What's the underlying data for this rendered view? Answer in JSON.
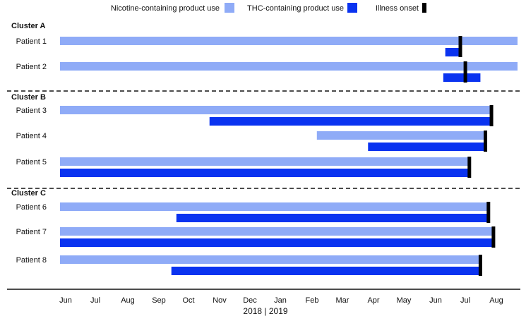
{
  "chart_data": {
    "type": "bar",
    "orientation": "horizontal-timeline",
    "x_unit": "month",
    "x_range": [
      "2018-06-01",
      "2019-08-31"
    ],
    "tick_labels": [
      "Jun",
      "Jul",
      "Aug",
      "Sep",
      "Oct",
      "Nov",
      "Dec",
      "Jan",
      "Feb",
      "Mar",
      "Apr",
      "May",
      "Jun",
      "Jul",
      "Aug"
    ],
    "year_label": "2018 | 2019",
    "legend": {
      "placement": "top",
      "items": [
        {
          "key": "nicotine",
          "label": "Nicotine-containing product use",
          "color": "#8fabf7"
        },
        {
          "key": "thc",
          "label": "THC-containing product use",
          "color": "#0a33f0"
        },
        {
          "key": "onset",
          "label": "Illness onset",
          "color": "#000000"
        }
      ]
    },
    "clusters": [
      {
        "name": "Cluster A",
        "patients": [
          {
            "label": "Patient 1",
            "nicotine": [
              "2018-06-01",
              "2019-08-31"
            ],
            "thc": [
              "2019-06-20",
              "2019-07-05"
            ],
            "onset": "2019-07-05"
          },
          {
            "label": "Patient 2",
            "nicotine": [
              "2018-06-01",
              "2019-08-31"
            ],
            "thc": [
              "2019-06-18",
              "2019-07-25"
            ],
            "onset": "2019-07-10"
          }
        ]
      },
      {
        "name": "Cluster B",
        "patients": [
          {
            "label": "Patient 3",
            "nicotine": [
              "2018-06-01",
              "2019-08-05"
            ],
            "thc": [
              "2018-10-28",
              "2019-08-05"
            ],
            "onset": "2019-08-05"
          },
          {
            "label": "Patient 4",
            "nicotine": [
              "2019-02-12",
              "2019-07-30"
            ],
            "thc": [
              "2019-04-04",
              "2019-07-30"
            ],
            "onset": "2019-07-30"
          },
          {
            "label": "Patient 5",
            "nicotine": [
              "2018-06-01",
              "2019-07-14"
            ],
            "thc": [
              "2018-06-01",
              "2019-07-14"
            ],
            "onset": "2019-07-14"
          }
        ]
      },
      {
        "name": "Cluster C",
        "patients": [
          {
            "label": "Patient 6",
            "nicotine": [
              "2018-06-01",
              "2019-08-02"
            ],
            "thc": [
              "2018-09-25",
              "2019-08-02"
            ],
            "onset": "2019-08-02"
          },
          {
            "label": "Patient 7",
            "nicotine": [
              "2018-06-01",
              "2019-08-07"
            ],
            "thc": [
              "2018-06-01",
              "2019-08-07"
            ],
            "onset": "2019-08-07"
          },
          {
            "label": "Patient 8",
            "nicotine": [
              "2018-06-01",
              "2019-07-25"
            ],
            "thc": [
              "2018-09-20",
              "2019-07-25"
            ],
            "onset": "2019-07-25"
          }
        ]
      }
    ]
  }
}
